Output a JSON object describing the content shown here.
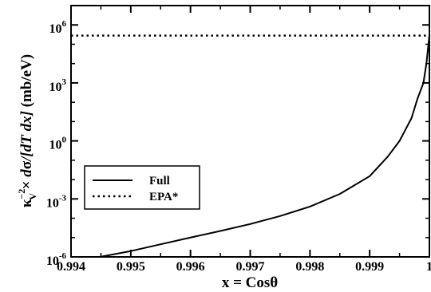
{
  "chart_data": {
    "type": "line",
    "xlabel": "x = Cosθ",
    "ylabel": {
      "kappa": "κ",
      "kappa_sup": "−2",
      "kappa_sub": "V",
      "times": " × ",
      "d": "d",
      "sigma": "σ",
      "bracket": "/[dT dx]",
      "unit": " (mb/eV)"
    },
    "x_range": [
      0.994,
      1.0
    ],
    "y_range_log10": [
      -6,
      7
    ],
    "y_scale": "log",
    "x_ticks": [
      {
        "value": 0.994,
        "label": "0.994"
      },
      {
        "value": 0.995,
        "label": "0.995"
      },
      {
        "value": 0.996,
        "label": "0.996"
      },
      {
        "value": 0.997,
        "label": "0.997"
      },
      {
        "value": 0.998,
        "label": "0.998"
      },
      {
        "value": 0.999,
        "label": "0.999"
      },
      {
        "value": 1.0,
        "label": "1"
      }
    ],
    "y_ticks": [
      {
        "exp": -6,
        "base": "10",
        "sup": "-6"
      },
      {
        "exp": -3,
        "base": "10",
        "sup": "-3"
      },
      {
        "exp": 0,
        "base": "10",
        "sup": "0"
      },
      {
        "exp": 3,
        "base": "10",
        "sup": "3"
      },
      {
        "exp": 6,
        "base": "10",
        "sup": "6"
      }
    ],
    "legend": {
      "placement": "lower-left",
      "entries": [
        {
          "name": "Full",
          "style": "solid"
        },
        {
          "name": "EPA*",
          "style": "dotted"
        }
      ]
    },
    "series": [
      {
        "name": "Full",
        "style": "solid",
        "x": [
          0.99448,
          0.995,
          0.9955,
          0.996,
          0.9965,
          0.997,
          0.9975,
          0.998,
          0.9985,
          0.999,
          0.9993,
          0.9995,
          0.9997,
          0.9998,
          0.9999,
          0.99995,
          1.0
        ],
        "y": [
          1e-06,
          2e-06,
          4.5e-06,
          1e-05,
          2.2e-05,
          5e-05,
          0.00013,
          0.0004,
          0.0018,
          0.015,
          0.15,
          1.0,
          15,
          150,
          1000,
          10000,
          300000
        ]
      },
      {
        "name": "EPA*",
        "style": "dotted",
        "x": [
          0.994,
          1.0
        ],
        "y": [
          280000,
          280000
        ]
      }
    ],
    "grid": false,
    "colors": {
      "line": "#000000",
      "background": "#ffffff"
    }
  }
}
